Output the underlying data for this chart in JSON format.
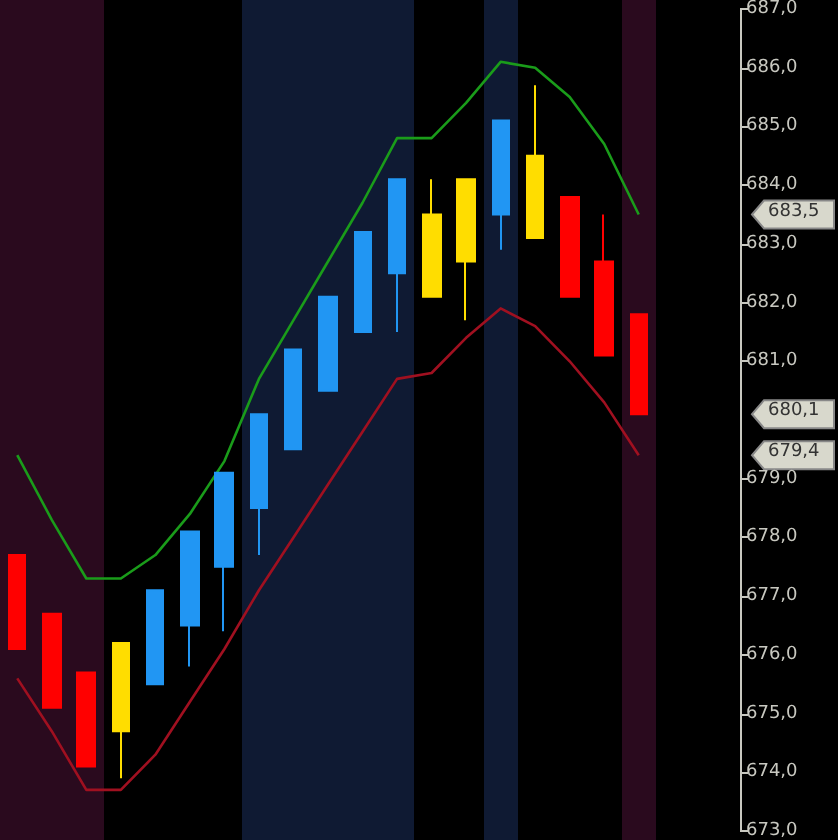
{
  "chart_data": {
    "type": "candlestick",
    "categories": [
      null,
      null,
      null,
      null,
      null,
      null,
      null,
      null,
      null,
      null,
      null,
      null,
      null,
      null,
      null,
      null,
      null,
      null,
      null
    ],
    "ohlc": [
      [
        677.7,
        677.7,
        676.1,
        676.1
      ],
      [
        676.7,
        676.7,
        675.1,
        675.1
      ],
      [
        675.7,
        675.7,
        674.1,
        674.1
      ],
      [
        674.7,
        676.2,
        673.9,
        676.2
      ],
      [
        675.5,
        677.1,
        675.5,
        677.1
      ],
      [
        676.5,
        678.1,
        675.8,
        678.1
      ],
      [
        677.5,
        679.1,
        676.4,
        679.1
      ],
      [
        678.5,
        680.1,
        677.7,
        680.1
      ],
      [
        679.5,
        681.2,
        679.5,
        681.2
      ],
      [
        680.5,
        682.1,
        680.5,
        682.1
      ],
      [
        681.5,
        683.2,
        681.5,
        683.2
      ],
      [
        682.5,
        684.1,
        681.5,
        684.1
      ],
      [
        682.1,
        684.1,
        682.1,
        683.5
      ],
      [
        682.7,
        684.1,
        681.7,
        684.1
      ],
      [
        683.5,
        685.1,
        682.9,
        685.1
      ],
      [
        683.1,
        685.7,
        683.1,
        684.5
      ],
      [
        683.8,
        683.8,
        682.1,
        682.1
      ],
      [
        682.7,
        683.5,
        681.1,
        681.1
      ],
      [
        681.8,
        681.8,
        680.1,
        680.1
      ]
    ],
    "colors": [
      "#ff0000",
      "#ff0000",
      "#ff0000",
      "#ffdd00",
      "#2196f3",
      "#2196f3",
      "#2196f3",
      "#2196f3",
      "#2196f3",
      "#2196f3",
      "#2196f3",
      "#2196f3",
      "#ffdd00",
      "#ffdd00",
      "#2196f3",
      "#ffdd00",
      "#ff0000",
      "#ff0000",
      "#ff0000"
    ],
    "series": [
      {
        "type": "line",
        "color": "#1a9c1a",
        "values": [
          679.4,
          678.3,
          677.3,
          677.3,
          677.7,
          678.4,
          679.3,
          680.7,
          681.7,
          682.7,
          683.7,
          684.8,
          684.8,
          685.4,
          686.1,
          686.0,
          685.5,
          684.7,
          683.5
        ]
      },
      {
        "type": "line",
        "color": "#a01020",
        "values": [
          675.6,
          674.7,
          673.7,
          673.7,
          674.3,
          675.2,
          676.1,
          677.1,
          678.0,
          678.9,
          679.8,
          680.7,
          680.8,
          681.4,
          681.9,
          681.6,
          681.0,
          680.3,
          679.4
        ]
      }
    ],
    "ylim": [
      673,
      687
    ],
    "yticks": [
      {
        "value": 673,
        "label": "673,0"
      },
      {
        "value": 674,
        "label": "674,0"
      },
      {
        "value": 675,
        "label": "675,0"
      },
      {
        "value": 676,
        "label": "676,0"
      },
      {
        "value": 677,
        "label": "677,0"
      },
      {
        "value": 678,
        "label": "678,0"
      },
      {
        "value": 679,
        "label": "679,0"
      },
      {
        "value": 681,
        "label": "681,0"
      },
      {
        "value": 682,
        "label": "682,0"
      },
      {
        "value": 683,
        "label": "683,0"
      },
      {
        "value": 684,
        "label": "684,0"
      },
      {
        "value": 685,
        "label": "685,0"
      },
      {
        "value": 686,
        "label": "686,0"
      },
      {
        "value": 687,
        "label": "687,0"
      }
    ],
    "annotations": [
      "683,5",
      "680,1",
      "679,4"
    ],
    "tick_labels": "y",
    "grid": false,
    "marker": "none",
    "line_style": "solid"
  }
}
